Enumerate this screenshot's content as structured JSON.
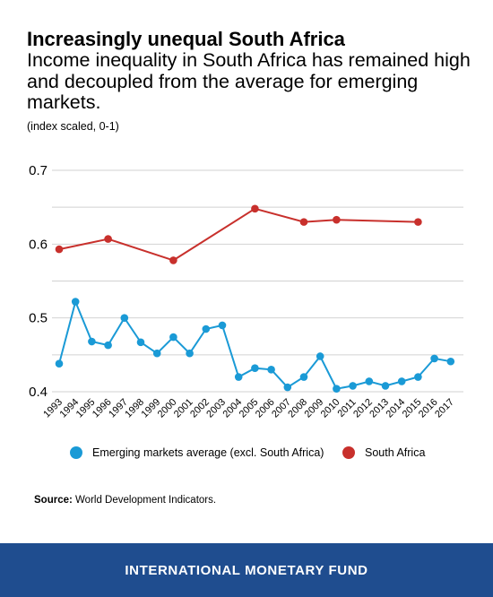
{
  "header": {
    "title": "Increasingly unequal South Africa",
    "subtitle": "Income inequality in South Africa has remained high and decoupled from the average for emerging markets.",
    "unit": "(index scaled, 0-1)"
  },
  "chart_data": {
    "type": "line",
    "x": [
      "1993",
      "1994",
      "1995",
      "1996",
      "1997",
      "1998",
      "1999",
      "2000",
      "2001",
      "2002",
      "2003",
      "2004",
      "2005",
      "2006",
      "2007",
      "2008",
      "2009",
      "2010",
      "2011",
      "2012",
      "2013",
      "2014",
      "2015",
      "2016",
      "2017"
    ],
    "ylim": [
      0.4,
      0.7
    ],
    "yticks": [
      0.4,
      0.5,
      0.6,
      0.7
    ],
    "ytick_labels": [
      "0.4",
      "0.5",
      "0.6",
      "0.7"
    ],
    "grid": true,
    "legend_position": "bottom",
    "series": [
      {
        "name": "Emerging markets average (excl. South Africa)",
        "color": "#1a9ad6",
        "values": [
          0.438,
          0.522,
          0.468,
          0.463,
          0.5,
          0.467,
          0.452,
          0.474,
          0.452,
          0.485,
          0.49,
          0.42,
          0.432,
          0.43,
          0.406,
          0.42,
          0.448,
          0.404,
          0.408,
          0.414,
          0.408,
          0.414,
          0.42,
          0.445,
          0.441
        ]
      },
      {
        "name": "South Africa",
        "color": "#c8302c",
        "values": [
          0.593,
          null,
          null,
          0.607,
          null,
          null,
          null,
          0.578,
          null,
          null,
          null,
          null,
          0.648,
          null,
          null,
          0.63,
          null,
          0.633,
          null,
          null,
          null,
          null,
          0.63,
          null,
          null
        ]
      }
    ]
  },
  "source": {
    "label": "Source:",
    "text": "World Development Indicators."
  },
  "footer": {
    "text": "INTERNATIONAL MONETARY FUND"
  }
}
